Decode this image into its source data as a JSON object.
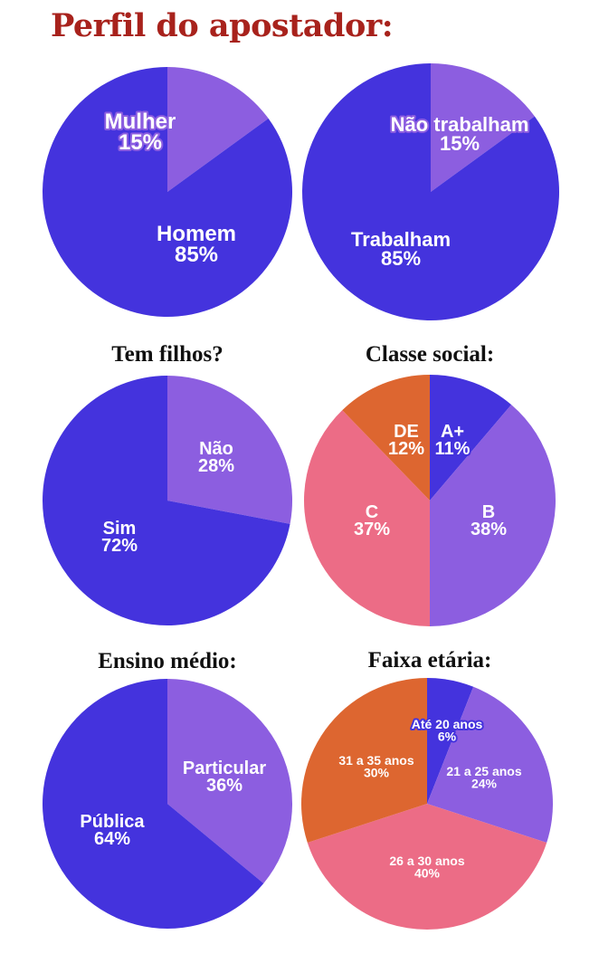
{
  "page": {
    "title": "Perfil do apostador:"
  },
  "colors": {
    "blue": "#4433dd",
    "lavender": "#8c5ee0",
    "pink": "#ec6c86",
    "orange": "#dd6630",
    "title_red": "#a8221c"
  },
  "chart_data": [
    {
      "type": "pie",
      "title": "",
      "slices": [
        {
          "label": "Mulher",
          "value_label": "15%",
          "value": 15,
          "color": "#8c5ee0"
        },
        {
          "label": "Homem",
          "value_label": "85%",
          "value": 85,
          "color": "#4433dd"
        }
      ]
    },
    {
      "type": "pie",
      "title": "",
      "slices": [
        {
          "label": "Não trabalham",
          "value_label": "15%",
          "value": 15,
          "color": "#8c5ee0"
        },
        {
          "label": "Trabalham",
          "value_label": "85%",
          "value": 85,
          "color": "#4433dd"
        }
      ]
    },
    {
      "type": "pie",
      "title": "Tem filhos?",
      "slices": [
        {
          "label": "Não",
          "value_label": "28%",
          "value": 28,
          "color": "#8c5ee0"
        },
        {
          "label": "Sim",
          "value_label": "72%",
          "value": 72,
          "color": "#4433dd"
        }
      ]
    },
    {
      "type": "pie",
      "title": "Classe social:",
      "slices": [
        {
          "label": "A+",
          "value_label": "11%",
          "value": 11,
          "color": "#4433dd"
        },
        {
          "label": "B",
          "value_label": "38%",
          "value": 38,
          "color": "#8c5ee0"
        },
        {
          "label": "C",
          "value_label": "37%",
          "value": 37,
          "color": "#ec6c86"
        },
        {
          "label": "DE",
          "value_label": "12%",
          "value": 12,
          "color": "#dd6630"
        }
      ]
    },
    {
      "type": "pie",
      "title": "Ensino médio:",
      "slices": [
        {
          "label": "Particular",
          "value_label": "36%",
          "value": 36,
          "color": "#8c5ee0"
        },
        {
          "label": "Pública",
          "value_label": "64%",
          "value": 64,
          "color": "#4433dd"
        }
      ]
    },
    {
      "type": "pie",
      "title": "Faixa etária:",
      "slices": [
        {
          "label": "Até 20 anos",
          "value_label": "6%",
          "value": 6,
          "color": "#4433dd"
        },
        {
          "label": "21 a 25 anos",
          "value_label": "24%",
          "value": 24,
          "color": "#8c5ee0"
        },
        {
          "label": "26 a 30 anos",
          "value_label": "40%",
          "value": 40,
          "color": "#ec6c86"
        },
        {
          "label": "31 a 35 anos",
          "value_label": "30%",
          "value": 30,
          "color": "#dd6630"
        }
      ]
    }
  ]
}
